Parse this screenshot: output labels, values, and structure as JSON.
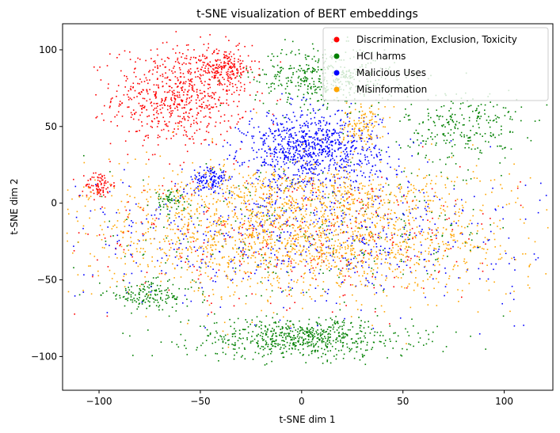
{
  "chart_data": {
    "type": "scatter",
    "title": "t-SNE visualization of BERT embeddings",
    "xlabel": "t-SNE dim 1",
    "ylabel": "t-SNE dim 2",
    "xlim": [
      -118,
      124
    ],
    "ylim": [
      -122,
      117
    ],
    "xticks": [
      -100,
      -50,
      0,
      50,
      100
    ],
    "yticks": [
      -100,
      -50,
      0,
      50,
      100
    ],
    "xtick_labels": [
      "−100",
      "−50",
      "0",
      "50",
      "100"
    ],
    "ytick_labels": [
      "−100",
      "−50",
      "0",
      "50",
      "100"
    ],
    "grid": false,
    "legend_position": "top-right",
    "series": [
      {
        "name": "Discrimination, Exclusion, Toxicity",
        "color": "#ff0000",
        "clusters": [
          {
            "cx": -60,
            "cy": 70,
            "rx": 30,
            "ry": 30,
            "n": 700
          },
          {
            "cx": -38,
            "cy": 88,
            "rx": 14,
            "ry": 12,
            "n": 180
          },
          {
            "cx": -100,
            "cy": 12,
            "rx": 6,
            "ry": 8,
            "n": 90
          },
          {
            "cx": 0,
            "cy": -20,
            "rx": 100,
            "ry": 40,
            "n": 350
          }
        ]
      },
      {
        "name": "HCI harms",
        "color": "#008000",
        "clusters": [
          {
            "cx": 12,
            "cy": 82,
            "rx": 32,
            "ry": 18,
            "n": 450
          },
          {
            "cx": 80,
            "cy": 50,
            "rx": 26,
            "ry": 22,
            "n": 250
          },
          {
            "cx": 0,
            "cy": -88,
            "rx": 50,
            "ry": 12,
            "n": 650
          },
          {
            "cx": -75,
            "cy": -60,
            "rx": 20,
            "ry": 8,
            "n": 160
          },
          {
            "cx": -65,
            "cy": 2,
            "rx": 8,
            "ry": 6,
            "n": 60
          },
          {
            "cx": 0,
            "cy": -20,
            "rx": 100,
            "ry": 40,
            "n": 250
          }
        ]
      },
      {
        "name": "Malicious Uses",
        "color": "#0000ff",
        "clusters": [
          {
            "cx": 5,
            "cy": 35,
            "rx": 30,
            "ry": 22,
            "n": 900
          },
          {
            "cx": -45,
            "cy": 15,
            "rx": 8,
            "ry": 8,
            "n": 120
          },
          {
            "cx": 0,
            "cy": -20,
            "rx": 100,
            "ry": 40,
            "n": 650
          }
        ]
      },
      {
        "name": "Misinformation",
        "color": "#ffa500",
        "clusters": [
          {
            "cx": 0,
            "cy": -20,
            "rx": 95,
            "ry": 38,
            "n": 1900
          },
          {
            "cx": 30,
            "cy": 50,
            "rx": 10,
            "ry": 12,
            "n": 120
          },
          {
            "cx": 0,
            "cy": 10,
            "rx": 60,
            "ry": 15,
            "n": 250
          }
        ]
      }
    ]
  }
}
